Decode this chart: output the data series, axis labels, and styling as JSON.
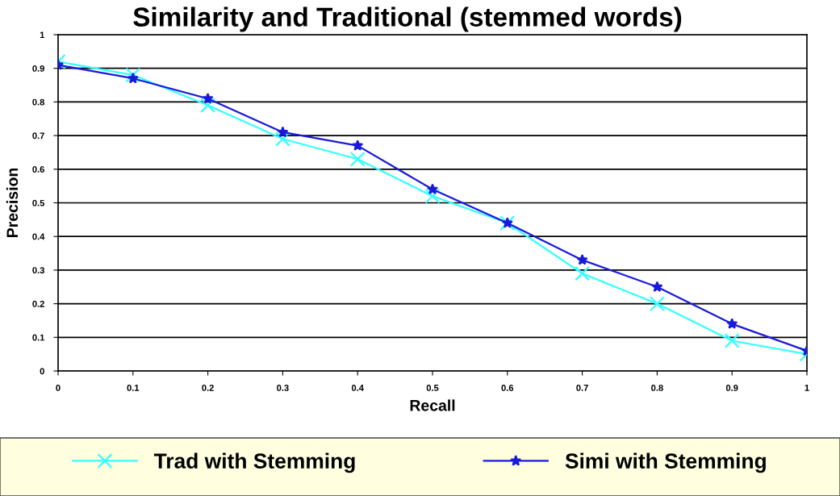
{
  "chart_data": {
    "type": "line",
    "title": "Similarity and Traditional (stemmed words)",
    "xlabel": "Recall",
    "ylabel": "Precision",
    "x": [
      0,
      0.1,
      0.2,
      0.3,
      0.4,
      0.5,
      0.6,
      0.7,
      0.8,
      0.9,
      1
    ],
    "series": [
      {
        "name": "Trad with Stemming",
        "color": "#33ffff",
        "marker": "cross",
        "values": [
          0.92,
          0.88,
          0.79,
          0.69,
          0.63,
          0.52,
          0.44,
          0.29,
          0.2,
          0.09,
          0.05
        ]
      },
      {
        "name": "Simi with Stemming",
        "color": "#1a1adb",
        "marker": "star",
        "values": [
          0.91,
          0.87,
          0.81,
          0.71,
          0.67,
          0.54,
          0.44,
          0.33,
          0.25,
          0.14,
          0.06
        ]
      }
    ],
    "xlim": [
      0,
      1
    ],
    "xticks": [
      0,
      0.1,
      0.2,
      0.3,
      0.4,
      0.5,
      0.6,
      0.7,
      0.8,
      0.9,
      1
    ],
    "ylim": [
      0,
      1
    ],
    "yticks": [
      0,
      0.1,
      0.2,
      0.3,
      0.4,
      0.5,
      0.6,
      0.7,
      0.8,
      0.9,
      1
    ],
    "grid": "y",
    "legend": "bottom",
    "line_style": "solid"
  }
}
